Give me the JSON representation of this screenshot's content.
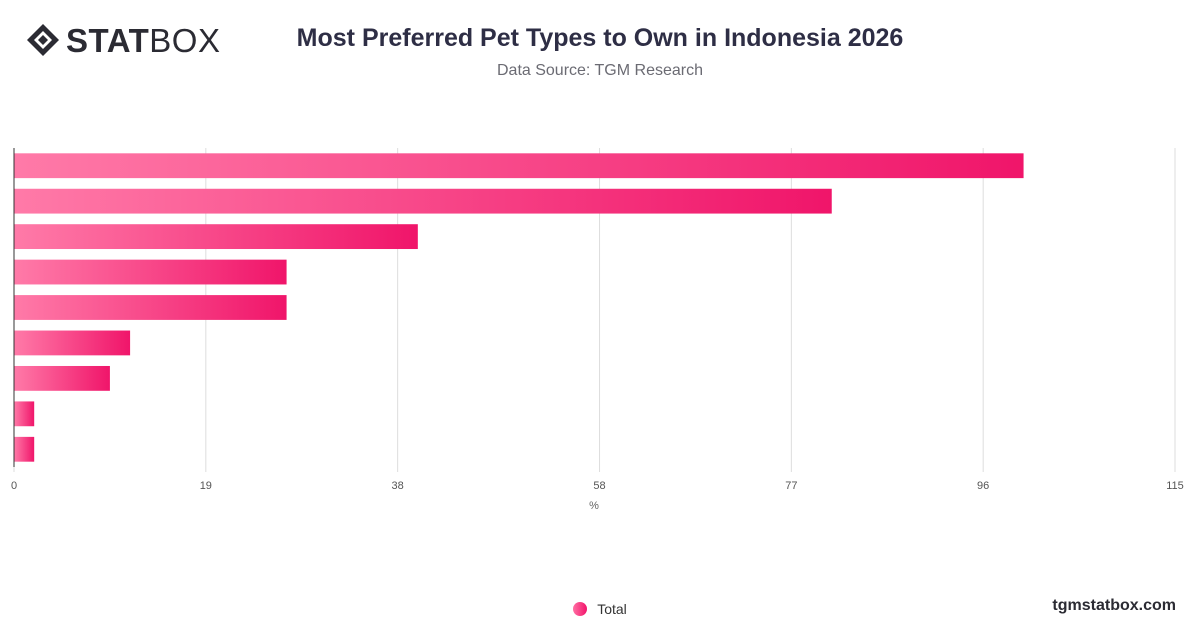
{
  "header": {
    "logo_bold": "STAT",
    "logo_light": "BOX",
    "title": "Most Preferred Pet Types to Own in Indonesia 2026",
    "subtitle": "Data Source: TGM Research"
  },
  "footer": {
    "brand_url": "tgmstatbox.com"
  },
  "colors": {
    "bar_start": "#ff7aa8",
    "bar_end": "#f0156a",
    "grid": "#dddddd",
    "axis": "#333333"
  },
  "chart_data": {
    "type": "bar",
    "orientation": "horizontal",
    "xlabel": "%",
    "ylabel": "",
    "xlim": [
      0,
      115
    ],
    "ticks": [
      0,
      19,
      38,
      58,
      77,
      96,
      115
    ],
    "grid": true,
    "legend_position": "bottom-center",
    "series": [
      {
        "name": "Total",
        "values": [
          100,
          81,
          40,
          27,
          27,
          11.5,
          9.5,
          2,
          2
        ]
      }
    ]
  }
}
